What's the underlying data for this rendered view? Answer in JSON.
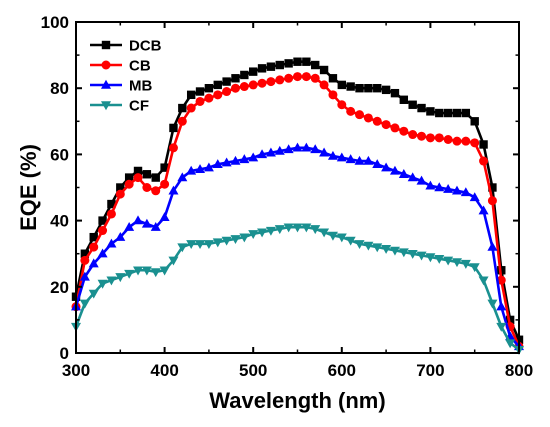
{
  "chart_data": {
    "type": "line",
    "title": "",
    "xlabel": "Wavelength (nm)",
    "ylabel": "EQE (%)",
    "xlim": [
      300,
      800
    ],
    "ylim": [
      0,
      100
    ],
    "x_ticks": [
      300,
      400,
      500,
      600,
      700,
      800
    ],
    "y_ticks": [
      0,
      20,
      40,
      60,
      80,
      100
    ],
    "grid": false,
    "legend_position": "top-left",
    "x": [
      300,
      310,
      320,
      330,
      340,
      350,
      360,
      370,
      380,
      390,
      400,
      410,
      420,
      430,
      440,
      450,
      460,
      470,
      480,
      490,
      500,
      510,
      520,
      530,
      540,
      550,
      560,
      570,
      580,
      590,
      600,
      610,
      620,
      630,
      640,
      650,
      660,
      670,
      680,
      690,
      700,
      710,
      720,
      730,
      740,
      750,
      760,
      770,
      780,
      790,
      800
    ],
    "series": [
      {
        "name": "DCB",
        "color": "#000000",
        "marker": "square",
        "values": [
          17,
          30,
          35,
          40,
          45,
          50,
          53,
          55,
          54,
          53,
          56,
          68,
          74,
          78,
          79,
          80,
          81,
          82,
          83,
          84,
          85,
          86,
          86.5,
          87,
          87.5,
          88,
          88,
          87,
          85.5,
          83,
          81,
          80.5,
          80,
          80,
          80,
          79.5,
          78.5,
          76.5,
          75,
          74,
          73,
          72.5,
          72.5,
          72.5,
          72.5,
          70,
          63,
          50,
          25,
          10,
          4
        ]
      },
      {
        "name": "CB",
        "color": "#ff0000",
        "marker": "circle",
        "values": [
          14,
          28,
          32,
          37,
          42,
          48,
          51,
          53,
          50,
          49,
          51,
          62,
          70,
          74,
          76,
          77,
          78,
          79,
          80,
          80.5,
          81,
          81.5,
          82,
          82.5,
          83,
          83.5,
          83.5,
          83,
          81,
          78,
          75,
          73,
          72,
          71,
          70,
          69,
          68,
          67,
          66,
          65.5,
          65,
          65,
          64.5,
          64,
          64,
          63.5,
          58,
          46,
          22,
          8,
          2
        ]
      },
      {
        "name": "MB",
        "color": "#0000ff",
        "marker": "triangle-up",
        "values": [
          14,
          23,
          27,
          30,
          33,
          35,
          38,
          40,
          39,
          38,
          41,
          49,
          53,
          55,
          55.5,
          56,
          57,
          57.5,
          58,
          58.5,
          59,
          60,
          60.5,
          61,
          61.5,
          62,
          62,
          61.5,
          60.5,
          59.5,
          59,
          58.5,
          58,
          58,
          57,
          56,
          55,
          54,
          53,
          52,
          50.5,
          50,
          49.5,
          49,
          48.5,
          47,
          43,
          32,
          14,
          5,
          2
        ]
      },
      {
        "name": "CF",
        "color": "#1a9090",
        "marker": "triangle-down",
        "values": [
          8,
          15,
          18,
          21,
          22,
          23,
          24,
          25,
          25,
          24.5,
          25,
          28,
          32,
          33,
          33,
          33,
          33.5,
          34,
          34.5,
          35,
          36,
          36.5,
          37,
          37.5,
          38,
          38,
          38,
          37.5,
          36.5,
          35.5,
          35,
          34,
          33,
          32.5,
          32,
          31.5,
          31,
          30.5,
          30,
          29.5,
          29,
          28.5,
          28,
          27.5,
          27,
          26,
          22,
          15,
          8,
          3,
          1
        ]
      }
    ]
  }
}
